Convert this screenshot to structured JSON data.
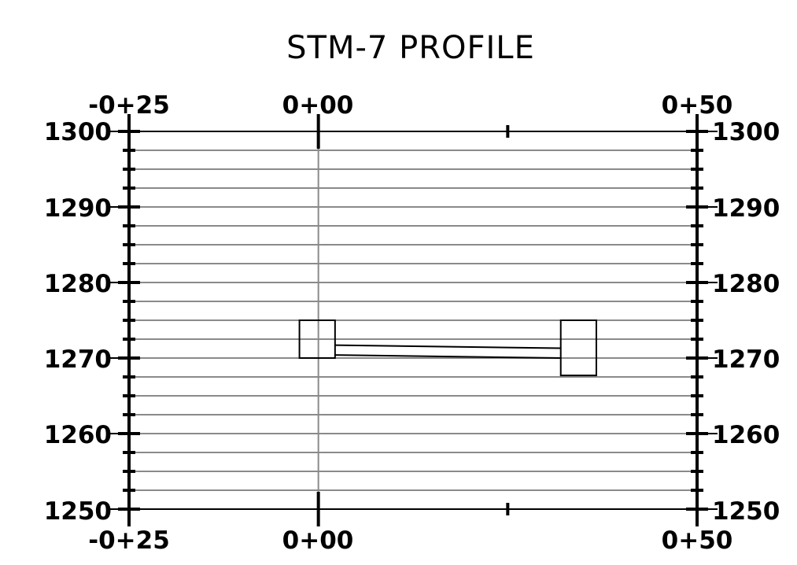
{
  "title": "STM-7 PROFILE",
  "chart_data": {
    "type": "profile",
    "stations": {
      "min": -25,
      "max": 50,
      "labeled": [
        -25,
        0,
        50
      ]
    },
    "station_labels": {
      "left": "-0+25",
      "center": "0+00",
      "right": "0+50"
    },
    "elevations": {
      "min": 1250,
      "max": 1300,
      "grid_interval": 2.5,
      "labeled": [
        1300,
        1290,
        1280,
        1270,
        1260,
        1250
      ]
    },
    "elevation_labels": [
      "1300",
      "1290",
      "1280",
      "1270",
      "1260",
      "1250"
    ],
    "structures": [
      {
        "name": "",
        "station_start": -2.5,
        "station_end": 2.2,
        "bottom_elev": 1270.0,
        "top_elev": 1275.0
      },
      {
        "name": "",
        "station_start": 32.0,
        "station_end": 36.7,
        "bottom_elev": 1267.7,
        "top_elev": 1275.0
      }
    ],
    "pipe": {
      "from_station": 2.2,
      "to_station": 32.0,
      "invert_start": 1270.4,
      "invert_end": 1270.0,
      "crown_start": 1271.7,
      "crown_end": 1271.3
    }
  }
}
